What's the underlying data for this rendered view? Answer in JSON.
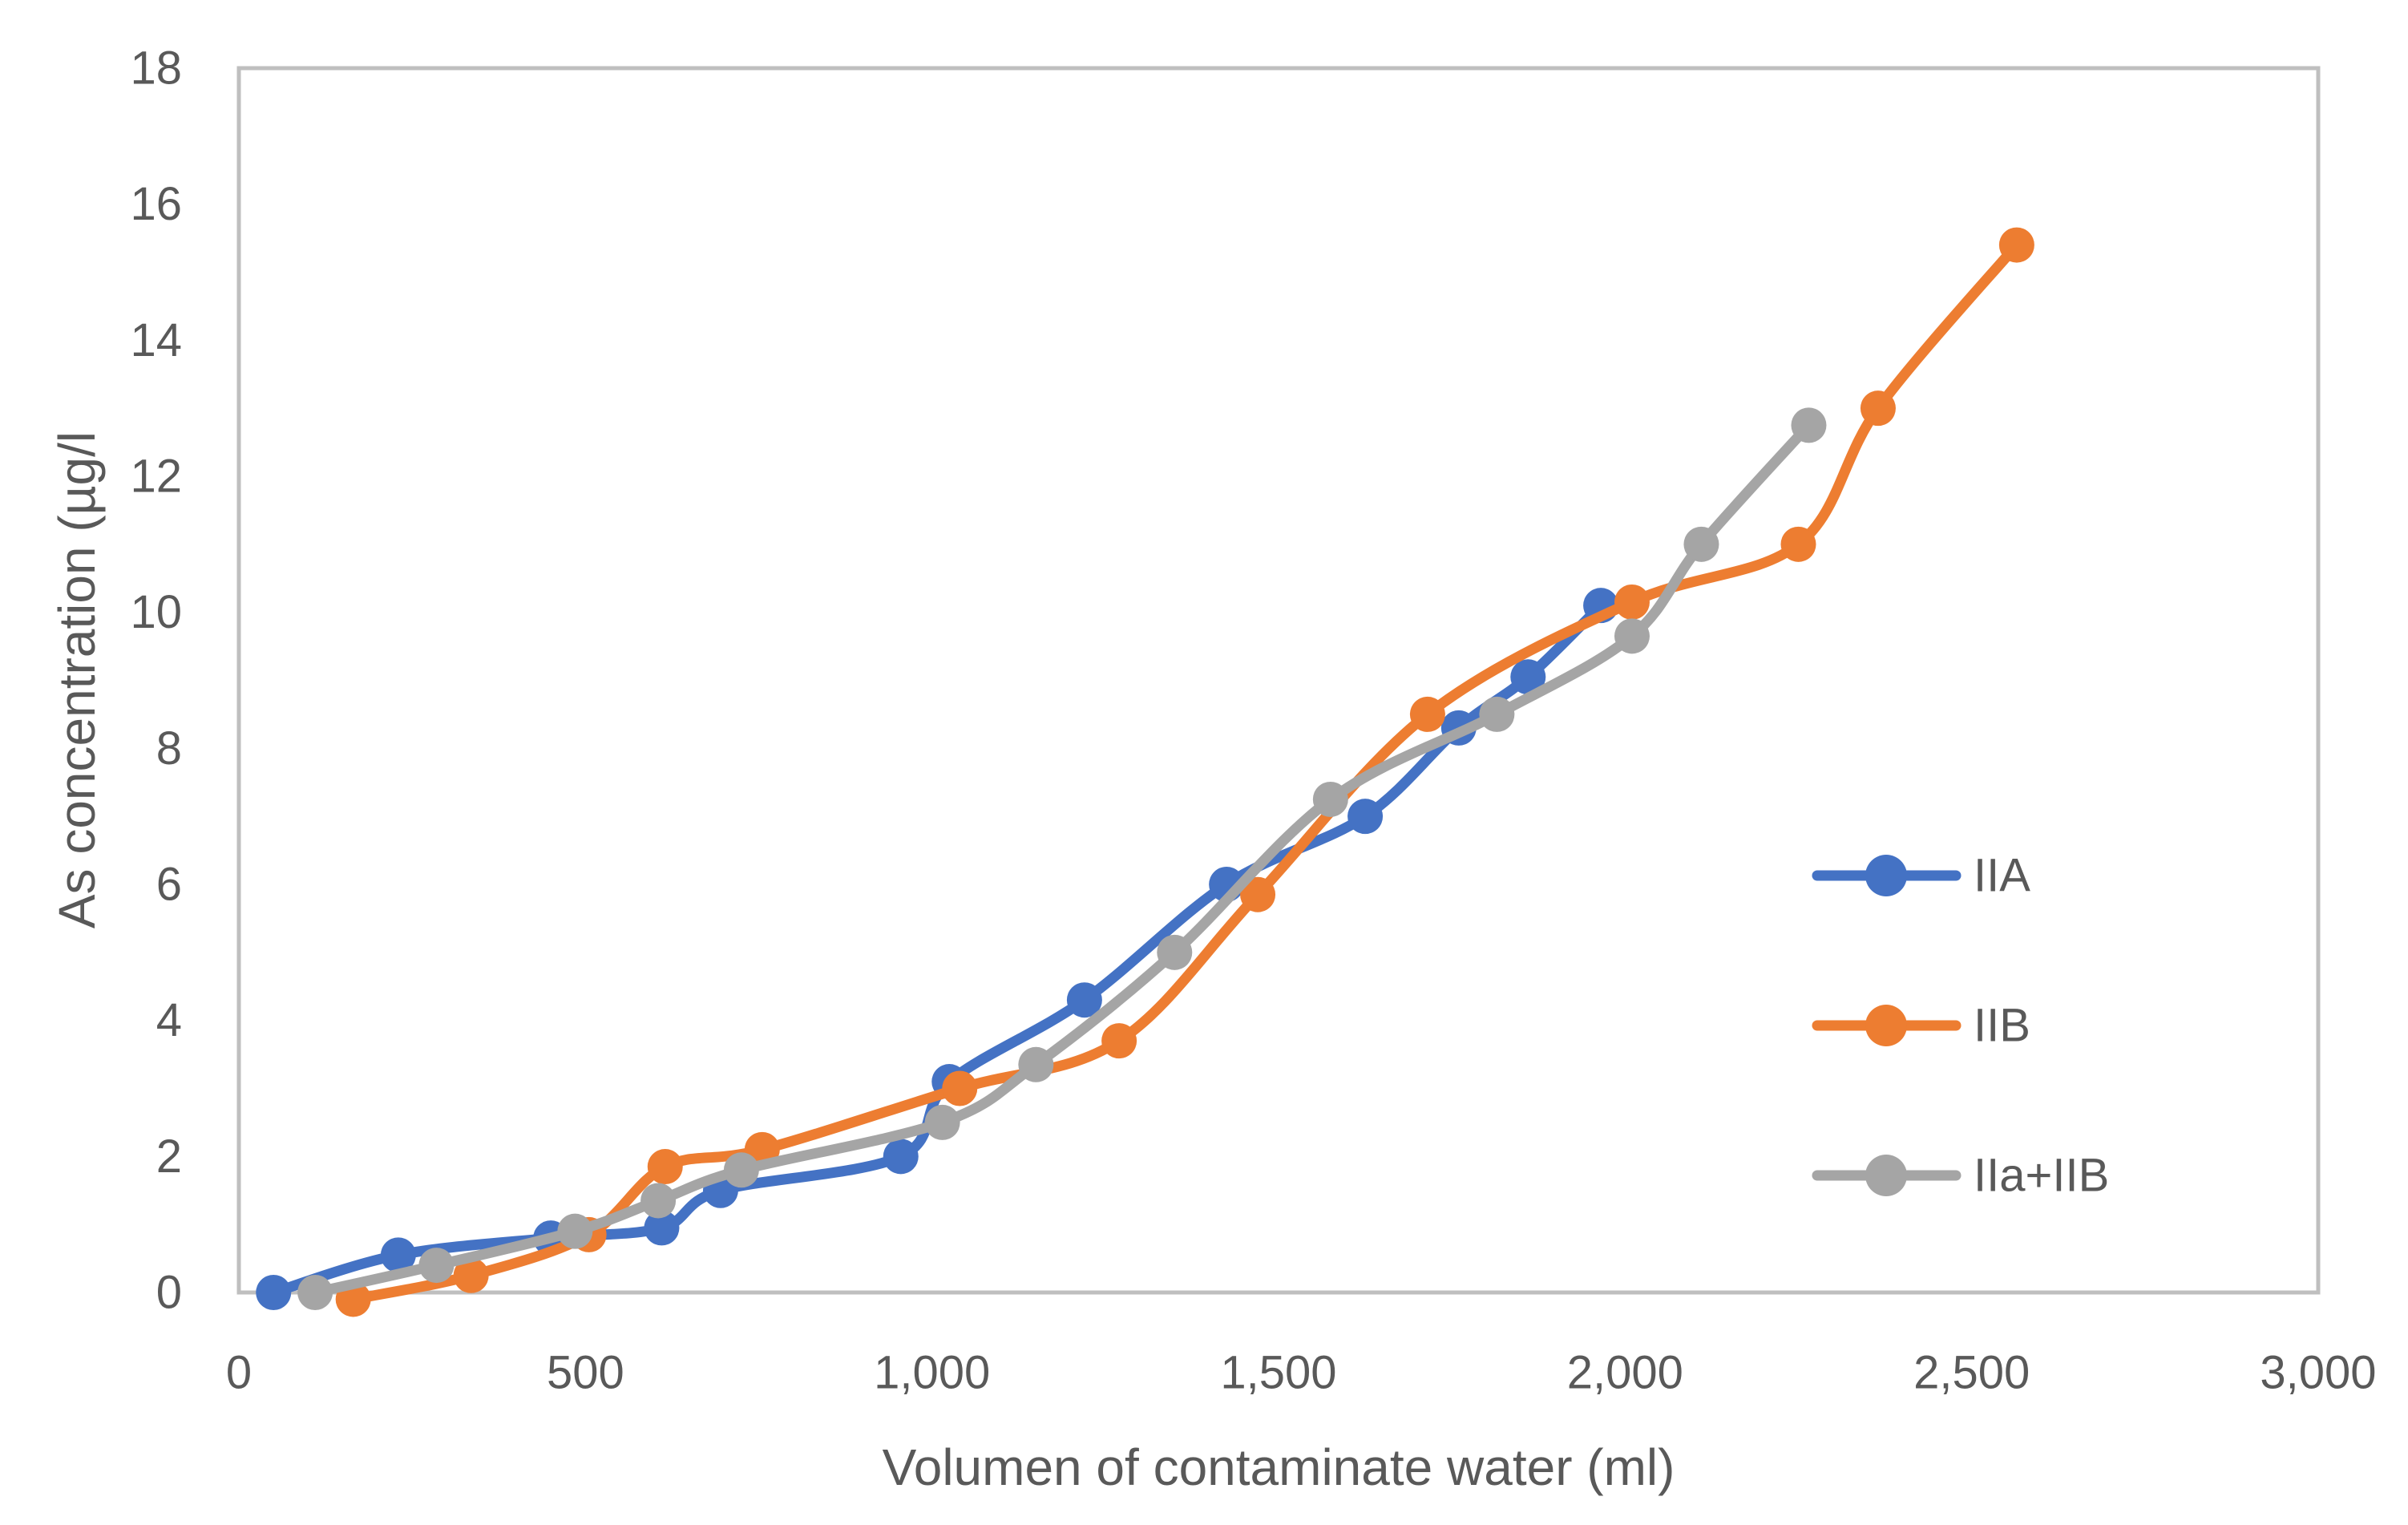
{
  "chart_data": {
    "type": "line",
    "title": "",
    "xlabel": "Volumen of contaminate water (ml)",
    "ylabel": "As concentration (µg/l",
    "xlim": [
      0,
      3000
    ],
    "ylim": [
      0,
      18
    ],
    "grid": false,
    "line_style": "smooth",
    "legend_position": "middle-right",
    "x_ticks": [
      0,
      500,
      1000,
      1500,
      2000,
      2500,
      3000
    ],
    "x_tick_labels": [
      "0",
      "500",
      "1,000",
      "1,500",
      "2,000",
      "2,500",
      "3,000"
    ],
    "y_ticks": [
      0,
      2,
      4,
      6,
      8,
      10,
      12,
      14,
      16,
      18
    ],
    "y_tick_labels": [
      "0",
      "2",
      "4",
      "6",
      "8",
      "10",
      "12",
      "14",
      "16",
      "18"
    ],
    "series": [
      {
        "name": "IIA",
        "color": "#4472C4",
        "points": [
          [
            50,
            0
          ],
          [
            230,
            0.55
          ],
          [
            450,
            0.8
          ],
          [
            610,
            0.95
          ],
          [
            695,
            1.5
          ],
          [
            955,
            2.0
          ],
          [
            1025,
            3.1
          ],
          [
            1220,
            4.3
          ],
          [
            1425,
            6.0
          ],
          [
            1625,
            7.0
          ],
          [
            1760,
            8.3
          ],
          [
            1860,
            9.05
          ],
          [
            1965,
            10.1
          ]
        ]
      },
      {
        "name": "IIB",
        "color": "#ED7D31",
        "points": [
          [
            165,
            -0.1
          ],
          [
            335,
            0.25
          ],
          [
            505,
            0.85
          ],
          [
            615,
            1.85
          ],
          [
            755,
            2.1
          ],
          [
            1040,
            3.0
          ],
          [
            1270,
            3.7
          ],
          [
            1470,
            5.85
          ],
          [
            1715,
            8.5
          ],
          [
            2010,
            10.15
          ],
          [
            2250,
            11.0
          ],
          [
            2365,
            13.0
          ],
          [
            2565,
            15.4
          ]
        ]
      },
      {
        "name": "IIa+IIB",
        "color": "#A5A5A5",
        "points": [
          [
            110,
            0
          ],
          [
            285,
            0.4
          ],
          [
            485,
            0.9
          ],
          [
            605,
            1.35
          ],
          [
            725,
            1.8
          ],
          [
            1015,
            2.5
          ],
          [
            1150,
            3.35
          ],
          [
            1350,
            5.0
          ],
          [
            1575,
            7.25
          ],
          [
            1815,
            8.5
          ],
          [
            2010,
            9.65
          ],
          [
            2110,
            11.0
          ],
          [
            2265,
            12.75
          ]
        ]
      }
    ]
  },
  "colors": {
    "text": "#595959",
    "axis_line": "#BFBFBF",
    "background": "#FFFFFF"
  }
}
